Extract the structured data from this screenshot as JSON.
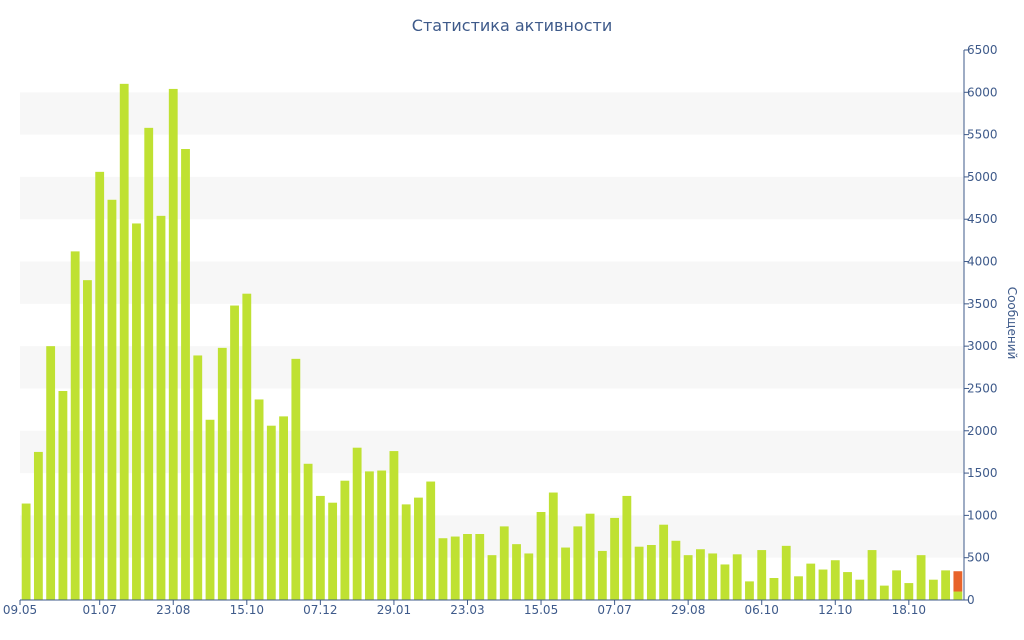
{
  "chart_data": {
    "type": "bar",
    "title": "Статистика активности",
    "ylabel": "Сообщений",
    "ylim": [
      0,
      6500
    ],
    "y_ticks": [
      0,
      500,
      1000,
      1500,
      2000,
      2500,
      3000,
      3500,
      4000,
      4500,
      5000,
      5500,
      6000,
      6500
    ],
    "grid": "alternating horizontal bands",
    "colors": {
      "bar": "#bfe132",
      "current": "#e8632a",
      "axis": "#3e5a8a",
      "band": "#f7f7f7"
    },
    "x_labels": [
      {
        "index": 0,
        "label": "09.05"
      },
      {
        "index": 6,
        "label": "01.07"
      },
      {
        "index": 12,
        "label": "23.08"
      },
      {
        "index": 18,
        "label": "15.10"
      },
      {
        "index": 24,
        "label": "07.12"
      },
      {
        "index": 30,
        "label": "29.01"
      },
      {
        "index": 36,
        "label": "23.03"
      },
      {
        "index": 42,
        "label": "15.05"
      },
      {
        "index": 48,
        "label": "07.07"
      },
      {
        "index": 54,
        "label": "29.08"
      },
      {
        "index": 60,
        "label": "06.10"
      },
      {
        "index": 66,
        "label": "12.10"
      },
      {
        "index": 72,
        "label": "18.10"
      }
    ],
    "values": [
      1140,
      1750,
      3000,
      2470,
      4120,
      3780,
      5060,
      4730,
      6100,
      4450,
      5580,
      4540,
      6040,
      5330,
      2890,
      2130,
      2980,
      3480,
      3620,
      2370,
      2060,
      2170,
      2850,
      1610,
      1230,
      1150,
      1410,
      1800,
      1520,
      1530,
      1760,
      1130,
      1210,
      1400,
      730,
      750,
      780,
      780,
      530,
      870,
      660,
      550,
      1040,
      1270,
      620,
      870,
      1020,
      580,
      970,
      1230,
      630,
      650,
      890,
      700,
      530,
      600,
      550,
      420,
      540,
      220,
      590,
      260,
      640,
      280,
      430,
      360,
      470,
      330,
      240,
      590,
      170,
      350,
      200,
      530,
      240,
      350,
      340
    ],
    "current_index": 76,
    "current_base": 100
  }
}
